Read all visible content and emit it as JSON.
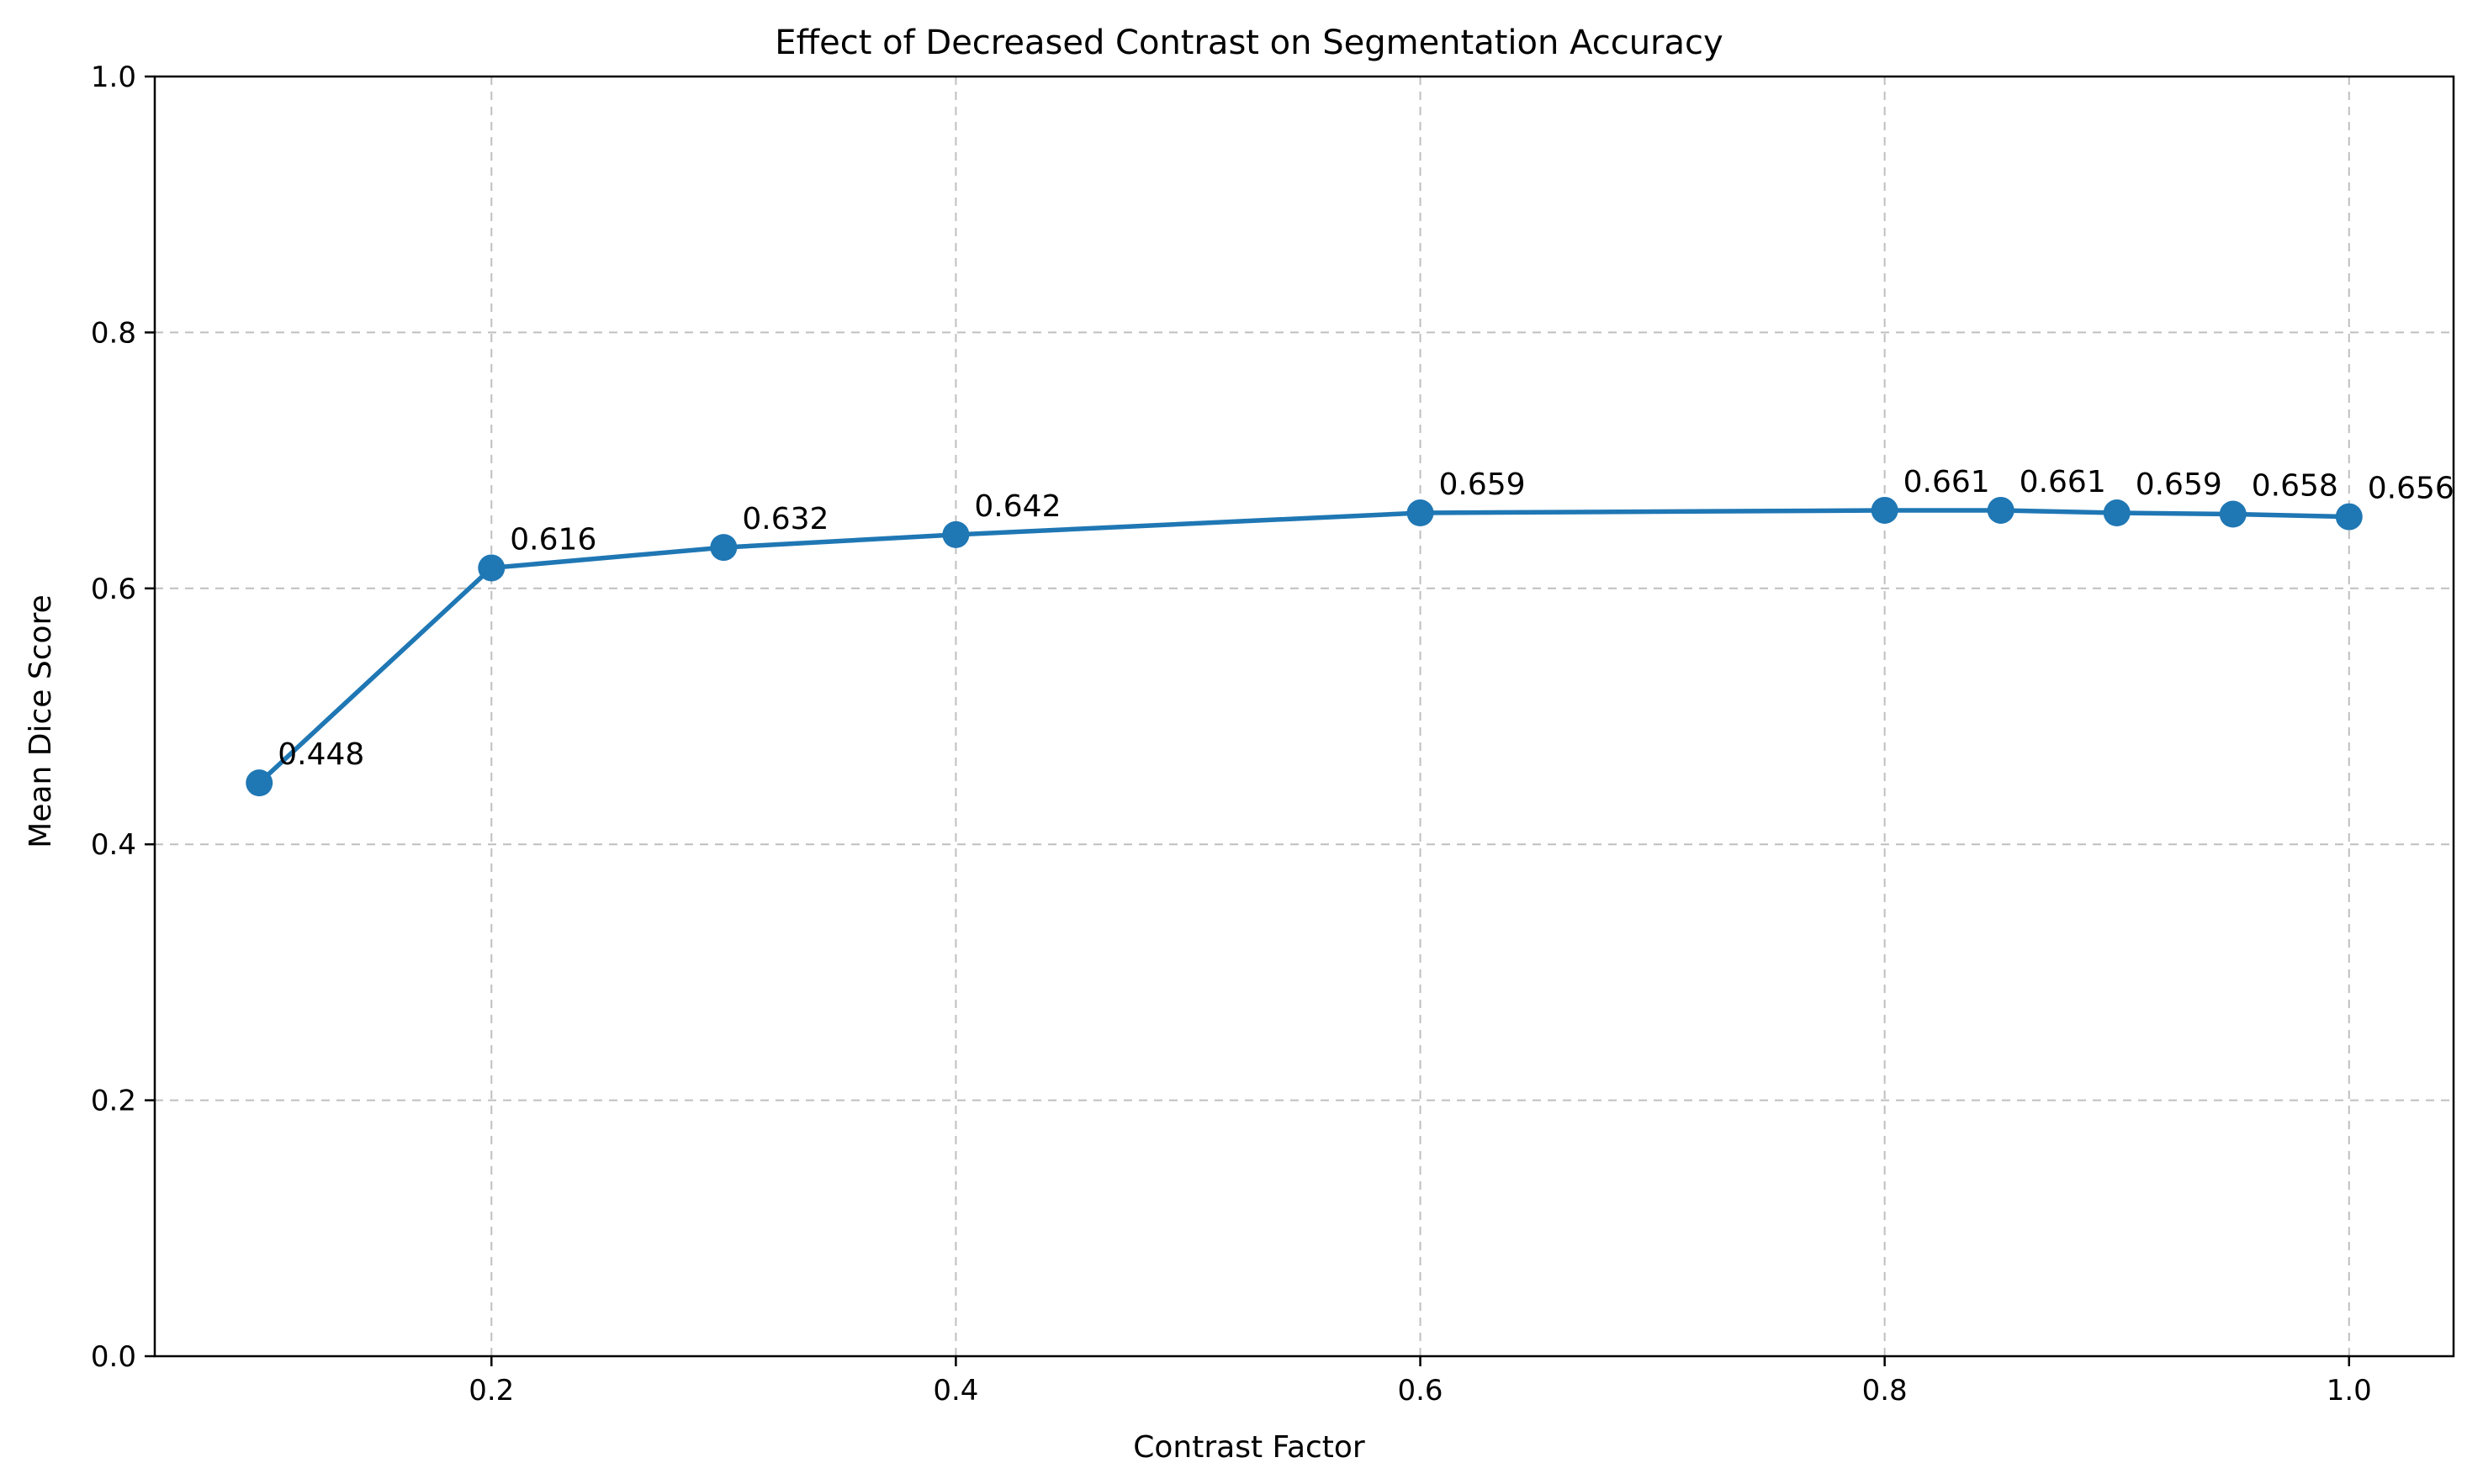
{
  "chart_data": {
    "type": "line",
    "title": "Effect of Decreased Contrast on Segmentation Accuracy",
    "xlabel": "Contrast Factor",
    "ylabel": "Mean Dice Score",
    "xlim": [
      0.055,
      1.045
    ],
    "ylim": [
      0.0,
      1.0
    ],
    "xticks": [
      0.2,
      0.4,
      0.6,
      0.8,
      1.0
    ],
    "xtick_labels": [
      "0.2",
      "0.4",
      "0.6",
      "0.8",
      "1.0"
    ],
    "yticks": [
      0.0,
      0.2,
      0.4,
      0.6,
      0.8,
      1.0
    ],
    "ytick_labels": [
      "0.0",
      "0.2",
      "0.4",
      "0.6",
      "0.8",
      "1.0"
    ],
    "grid": true,
    "color": "#1f77b4",
    "series": [
      {
        "x": [
          0.1,
          0.2,
          0.3,
          0.4,
          0.6,
          0.8,
          0.85,
          0.9,
          0.95,
          1.0
        ],
        "y": [
          0.448,
          0.616,
          0.632,
          0.642,
          0.659,
          0.661,
          0.661,
          0.659,
          0.658,
          0.656
        ],
        "labels": [
          "0.448",
          "0.616",
          "0.632",
          "0.642",
          "0.659",
          "0.661",
          "0.661",
          "0.659",
          "0.658",
          "0.656"
        ]
      }
    ]
  }
}
